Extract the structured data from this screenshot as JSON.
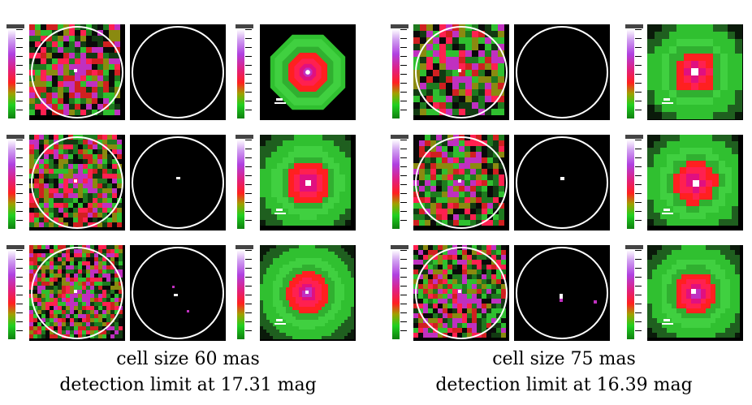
{
  "figure": {
    "groups": [
      {
        "caption_line1": "cell size 60 mas",
        "caption_line2": "detection limit at 17.31 mag"
      },
      {
        "caption_line1": "cell size 75 mas",
        "caption_line2": "detection limit at 16.39 mag"
      }
    ],
    "colors": {
      "background": "#000000",
      "circle": "#ffffff",
      "green": "#20c020",
      "red": "#ff2020",
      "magenta": "#c030c0",
      "white": "#ffffff"
    }
  }
}
